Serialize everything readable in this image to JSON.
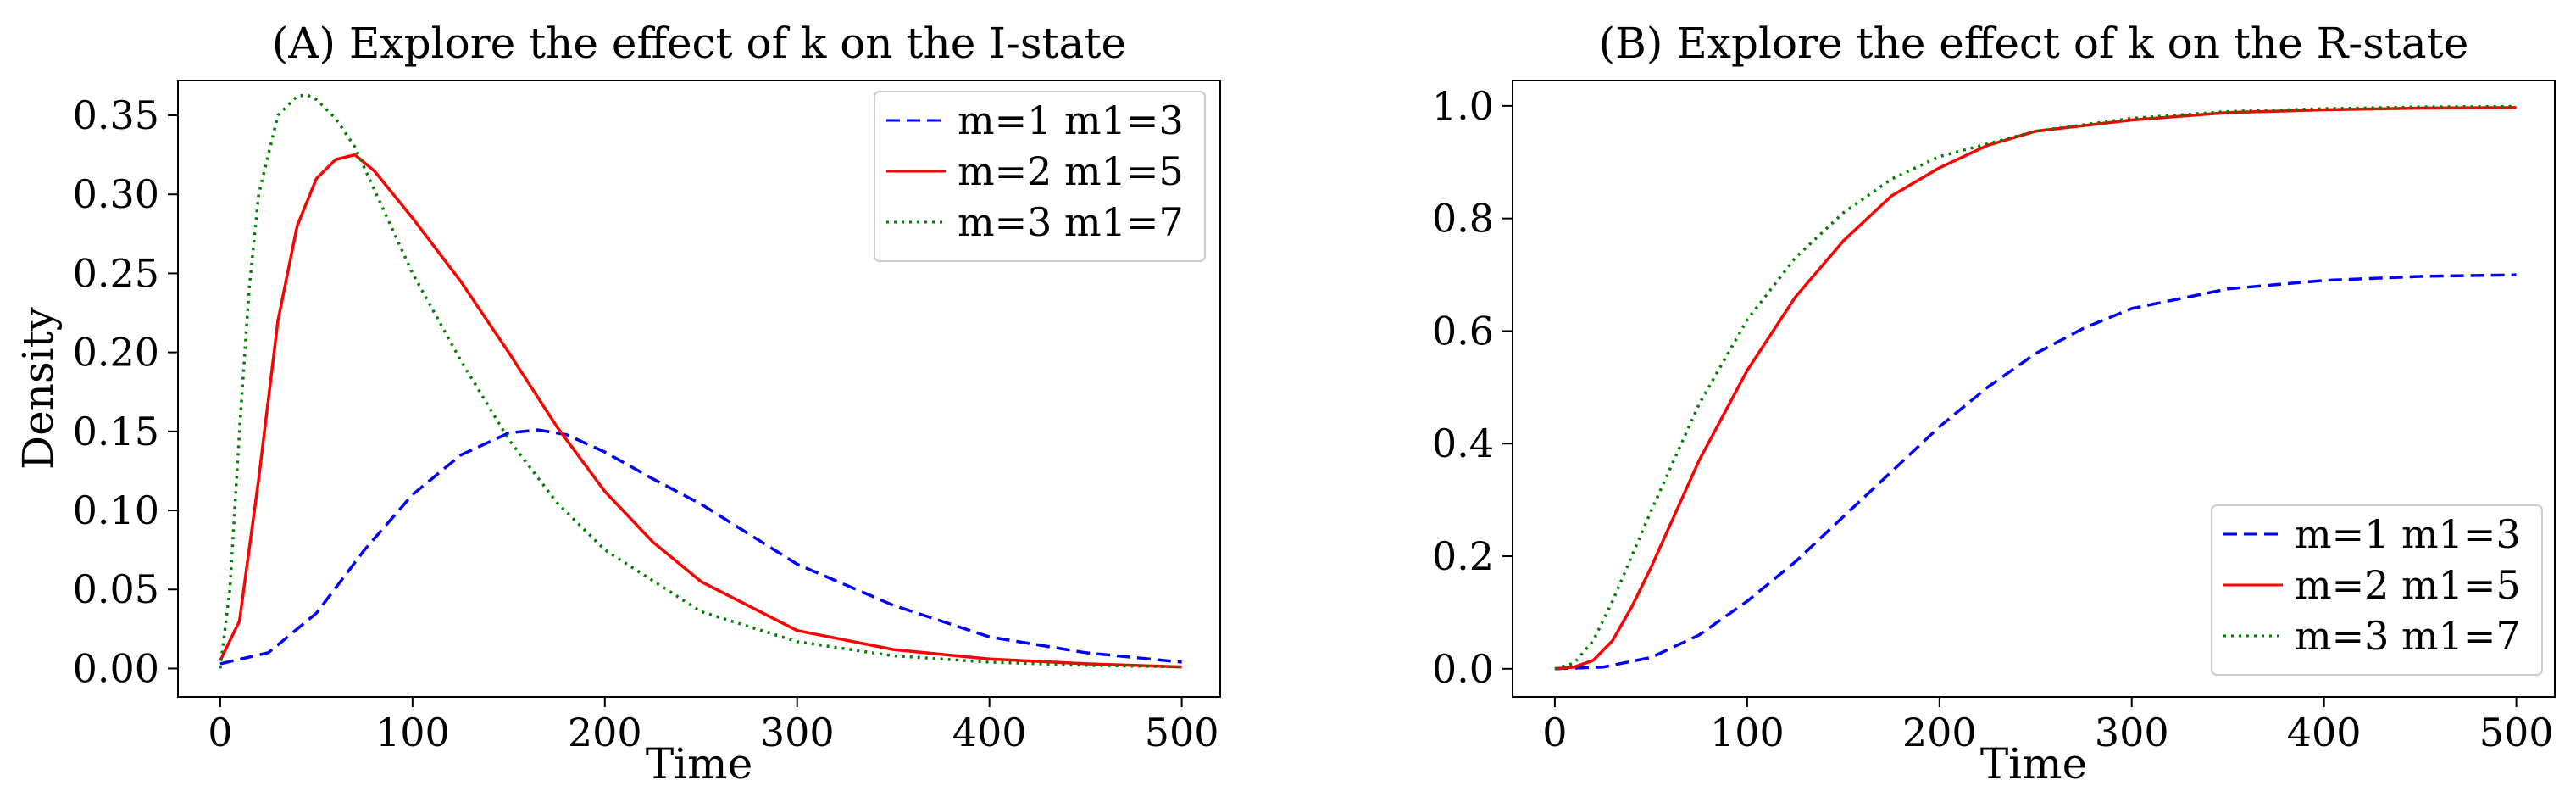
{
  "chart_data": [
    {
      "type": "line",
      "title": "(A) Explore the effect of k on the I-state",
      "xlabel": "Time",
      "ylabel": "Density",
      "xlim": [
        -22,
        520
      ],
      "ylim": [
        -0.018,
        0.372
      ],
      "xticks": [
        0,
        100,
        200,
        300,
        400,
        500
      ],
      "xtick_labels": [
        "0",
        "100",
        "200",
        "300",
        "400",
        "500"
      ],
      "yticks": [
        0.0,
        0.05,
        0.1,
        0.15,
        0.2,
        0.25,
        0.3,
        0.35
      ],
      "ytick_labels": [
        "0.00",
        "0.05",
        "0.10",
        "0.15",
        "0.20",
        "0.25",
        "0.30",
        "0.35"
      ],
      "legend_position": "top-right",
      "series": [
        {
          "name": "m=1 m1=3",
          "color": "#0000ff",
          "style": "dashed",
          "x": [
            0,
            25,
            50,
            75,
            100,
            125,
            150,
            165,
            180,
            200,
            225,
            250,
            275,
            300,
            350,
            400,
            450,
            500
          ],
          "y": [
            0.003,
            0.01,
            0.035,
            0.075,
            0.11,
            0.135,
            0.149,
            0.151,
            0.148,
            0.137,
            0.12,
            0.104,
            0.085,
            0.066,
            0.04,
            0.02,
            0.01,
            0.004
          ]
        },
        {
          "name": "m=2 m1=5",
          "color": "#ff0000",
          "style": "solid",
          "x": [
            0,
            10,
            20,
            30,
            40,
            50,
            60,
            70,
            80,
            100,
            125,
            150,
            175,
            200,
            225,
            250,
            300,
            350,
            400,
            450,
            500
          ],
          "y": [
            0.005,
            0.03,
            0.12,
            0.22,
            0.28,
            0.31,
            0.322,
            0.325,
            0.315,
            0.285,
            0.245,
            0.2,
            0.153,
            0.112,
            0.08,
            0.055,
            0.024,
            0.012,
            0.006,
            0.003,
            0.001
          ]
        },
        {
          "name": "m=3 m1=7",
          "color": "#008000",
          "style": "dotted",
          "x": [
            0,
            5,
            10,
            15,
            20,
            30,
            40,
            45,
            50,
            60,
            70,
            85,
            100,
            125,
            150,
            175,
            200,
            250,
            300,
            350,
            400,
            450,
            500
          ],
          "y": [
            0.0,
            0.05,
            0.15,
            0.24,
            0.3,
            0.35,
            0.362,
            0.363,
            0.36,
            0.348,
            0.33,
            0.29,
            0.25,
            0.195,
            0.145,
            0.105,
            0.075,
            0.036,
            0.017,
            0.008,
            0.004,
            0.002,
            0.001
          ]
        }
      ]
    },
    {
      "type": "line",
      "title": "(B) Explore the effect of k on the R-state",
      "xlabel": "Time",
      "ylabel": "",
      "xlim": [
        -22,
        520
      ],
      "ylim": [
        -0.05,
        1.045
      ],
      "xticks": [
        0,
        100,
        200,
        300,
        400,
        500
      ],
      "xtick_labels": [
        "0",
        "100",
        "200",
        "300",
        "400",
        "500"
      ],
      "yticks": [
        0.0,
        0.2,
        0.4,
        0.6,
        0.8,
        1.0
      ],
      "ytick_labels": [
        "0.0",
        "0.2",
        "0.4",
        "0.6",
        "0.8",
        "1.0"
      ],
      "legend_position": "bottom-right",
      "series": [
        {
          "name": "m=1 m1=3",
          "color": "#0000ff",
          "style": "dashed",
          "x": [
            0,
            25,
            50,
            75,
            100,
            125,
            150,
            175,
            200,
            225,
            250,
            275,
            300,
            350,
            400,
            450,
            500
          ],
          "y": [
            0.0,
            0.003,
            0.02,
            0.06,
            0.12,
            0.19,
            0.27,
            0.35,
            0.43,
            0.5,
            0.56,
            0.605,
            0.64,
            0.675,
            0.69,
            0.697,
            0.7
          ]
        },
        {
          "name": "m=2 m1=5",
          "color": "#ff0000",
          "style": "solid",
          "x": [
            0,
            10,
            20,
            30,
            40,
            50,
            75,
            100,
            125,
            150,
            175,
            200,
            225,
            250,
            300,
            350,
            400,
            450,
            500
          ],
          "y": [
            0.0,
            0.003,
            0.015,
            0.05,
            0.11,
            0.18,
            0.37,
            0.53,
            0.66,
            0.76,
            0.84,
            0.89,
            0.93,
            0.955,
            0.975,
            0.988,
            0.993,
            0.996,
            0.997
          ]
        },
        {
          "name": "m=3 m1=7",
          "color": "#008000",
          "style": "dotted",
          "x": [
            0,
            10,
            20,
            30,
            40,
            50,
            75,
            100,
            125,
            150,
            175,
            200,
            250,
            300,
            350,
            400,
            450,
            500
          ],
          "y": [
            0.0,
            0.01,
            0.05,
            0.12,
            0.2,
            0.28,
            0.47,
            0.62,
            0.73,
            0.81,
            0.87,
            0.91,
            0.955,
            0.978,
            0.99,
            0.995,
            0.998,
            0.999
          ]
        }
      ]
    }
  ]
}
